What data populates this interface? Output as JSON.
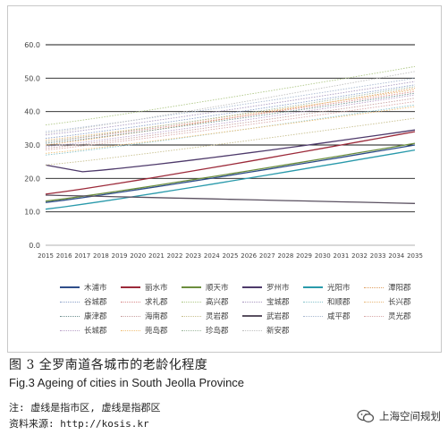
{
  "figure": {
    "caption_cn": "图 3   全罗南道各城市的老龄化程度",
    "caption_en": "Fig.3   Ageing of cities in South Jeolla Province",
    "note": "注: 虚线是指市区, 虚线是指郡区",
    "source": "资料来源: http://kosis.kr",
    "watermark": "上海空间规划"
  },
  "chart_data": {
    "type": "line",
    "x": [
      2015,
      2016,
      2017,
      2018,
      2019,
      2020,
      2021,
      2022,
      2023,
      2024,
      2025,
      2026,
      2027,
      2028,
      2029,
      2030,
      2031,
      2032,
      2033,
      2034,
      2035
    ],
    "ylim": [
      0,
      60
    ],
    "yticks": [
      "0.0",
      "10.0",
      "20.0",
      "30.0",
      "40.0",
      "50.0",
      "60.0"
    ],
    "grid": "horizontal",
    "legend_position": "bottom",
    "series": [
      {
        "name": "木浦市",
        "color": "#2f4e8a",
        "dash": "solid",
        "start": 12.8,
        "end": 30.0
      },
      {
        "name": "丽水市",
        "color": "#9c2a3a",
        "dash": "solid",
        "start": 15.3,
        "end": 34.0
      },
      {
        "name": "顺天市",
        "color": "#6c8e3e",
        "dash": "solid",
        "start": 13.2,
        "end": 30.5
      },
      {
        "name": "罗州市",
        "color": "#4e3a6b",
        "dash": "solid",
        "start": 24.0,
        "end": 34.5
      },
      {
        "name": "光阳市",
        "color": "#2a9aab",
        "dash": "solid",
        "start": 10.8,
        "end": 28.5
      },
      {
        "name": "潭阳郡",
        "color": "#e0a060",
        "dash": "dotted",
        "start": 30.0,
        "end": 47.0
      },
      {
        "name": "谷城郡",
        "color": "#8aa0c8",
        "dash": "dotted",
        "start": 32.0,
        "end": 48.0
      },
      {
        "name": "求礼郡",
        "color": "#d88a8a",
        "dash": "dotted",
        "start": 31.0,
        "end": 46.0
      },
      {
        "name": "高兴郡",
        "color": "#b0c888",
        "dash": "dotted",
        "start": 36.0,
        "end": 53.5
      },
      {
        "name": "宝城郡",
        "color": "#a898c0",
        "dash": "dotted",
        "start": 33.0,
        "end": 49.0
      },
      {
        "name": "和顺郡",
        "color": "#88c4cc",
        "dash": "dotted",
        "start": 27.0,
        "end": 42.0
      },
      {
        "name": "长兴郡",
        "color": "#e8b878",
        "dash": "dotted",
        "start": 31.5,
        "end": 46.5
      },
      {
        "name": "康津郡",
        "color": "#6f9090",
        "dash": "dotted",
        "start": 30.5,
        "end": 45.5
      },
      {
        "name": "海南郡",
        "color": "#c8a0a0",
        "dash": "dotted",
        "start": 29.0,
        "end": 44.0
      },
      {
        "name": "灵岩郡",
        "color": "#c8c090",
        "dash": "dotted",
        "start": 24.0,
        "end": 38.0
      },
      {
        "name": "武岩郡",
        "color": "#5a5060",
        "dash": "solid",
        "start": 15.0,
        "end": 12.5
      },
      {
        "name": "咸平郡",
        "color": "#a8b8d0",
        "dash": "dotted",
        "start": 34.0,
        "end": 50.0
      },
      {
        "name": "灵光郡",
        "color": "#d8a8a8",
        "dash": "dotted",
        "start": 28.5,
        "end": 43.0
      },
      {
        "name": "长城郡",
        "color": "#b8a0c8",
        "dash": "dotted",
        "start": 29.5,
        "end": 45.0
      },
      {
        "name": "莞岛郡",
        "color": "#f0c078",
        "dash": "dotted",
        "start": 27.5,
        "end": 41.5
      },
      {
        "name": "珍岛郡",
        "color": "#a0b8a0",
        "dash": "dotted",
        "start": 31.0,
        "end": 47.5
      },
      {
        "name": "新安郡",
        "color": "#c0c0c0",
        "dash": "dotted",
        "start": 33.5,
        "end": 52.0
      }
    ]
  }
}
